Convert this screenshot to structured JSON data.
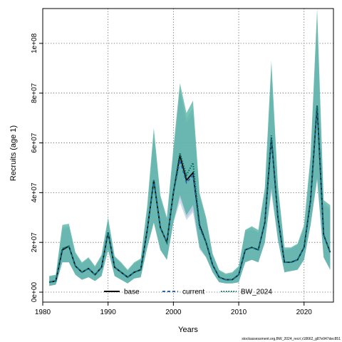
{
  "chart_data": {
    "type": "area",
    "xlabel": "Years",
    "ylabel": "Recruits (age 1)",
    "xlim": [
      1980,
      2024.5
    ],
    "ylim": [
      -4000000,
      114000000
    ],
    "x_ticks": [
      1980,
      1990,
      2000,
      2010,
      2020
    ],
    "y_ticks": [
      0,
      20000000,
      40000000,
      60000000,
      80000000,
      100000000
    ],
    "y_tick_labels": [
      "0e+00",
      "2e+07",
      "4e+07",
      "6e+07",
      "8e+07",
      "1e+08"
    ],
    "grid": true,
    "legend_position": "bottom-center",
    "x": [
      1981,
      1982,
      1983,
      1984,
      1985,
      1986,
      1987,
      1988,
      1989,
      1990,
      1991,
      1992,
      1993,
      1994,
      1995,
      1996,
      1997,
      1998,
      1999,
      2000,
      2001,
      2002,
      2003,
      2004,
      2005,
      2006,
      2007,
      2008,
      2009,
      2010,
      2011,
      2012,
      2013,
      2014,
      2015,
      2016,
      2017,
      2018,
      2019,
      2020,
      2021,
      2022,
      2023,
      2024
    ],
    "series": [
      {
        "name": "base",
        "line_style": "solid",
        "color": "#000000",
        "band_color": "#9fb3cf",
        "values": [
          4000000,
          4500000,
          17000000,
          18500000,
          10500000,
          8000000,
          9500000,
          7000000,
          10000000,
          24000000,
          10000000,
          8000000,
          6000000,
          8000000,
          9000000,
          25000000,
          45000000,
          26000000,
          20000000,
          40000000,
          55000000,
          45000000,
          48000000,
          27000000,
          20000000,
          11000000,
          6000000,
          5000000,
          5000000,
          7000000,
          17000000,
          18000000,
          17000000,
          28000000,
          62000000,
          30000000,
          12000000,
          12000000,
          13000000,
          18000000,
          37000000,
          75000000,
          23000000,
          16000000
        ],
        "lower": [
          2500000,
          3000000,
          12000000,
          12000000,
          7000000,
          5000000,
          6000000,
          4500000,
          6500000,
          17000000,
          6500000,
          5000000,
          3500000,
          5500000,
          6000000,
          18000000,
          28000000,
          17000000,
          13000000,
          28000000,
          38000000,
          30000000,
          33000000,
          18000000,
          14000000,
          8000000,
          4000000,
          3500000,
          3500000,
          4000000,
          12000000,
          13000000,
          12000000,
          20000000,
          40000000,
          21000000,
          8000000,
          8500000,
          9000000,
          13000000,
          27000000,
          45000000,
          14000000,
          9000000
        ],
        "upper": [
          6000000,
          6500000,
          25000000,
          26000000,
          15000000,
          11500000,
          13500000,
          10000000,
          14500000,
          29000000,
          14000000,
          11500000,
          8500000,
          11500000,
          13000000,
          33000000,
          62000000,
          38000000,
          29000000,
          55000000,
          80000000,
          68000000,
          72000000,
          38000000,
          29000000,
          15000000,
          8500000,
          7000000,
          7500000,
          10000000,
          24000000,
          25000000,
          24000000,
          40000000,
          88000000,
          42000000,
          17000000,
          17500000,
          19000000,
          25000000,
          52000000,
          108000000,
          35000000,
          33000000
        ]
      },
      {
        "name": "current",
        "line_style": "dashed",
        "color": "#2a66b0",
        "band_color": "#a9c2dd",
        "values": [
          4000000,
          4500000,
          17500000,
          18500000,
          10500000,
          8000000,
          9500000,
          7000000,
          10000000,
          24000000,
          10000000,
          8000000,
          6000000,
          8000000,
          9000000,
          25000000,
          45000000,
          26000000,
          20000000,
          40000000,
          53000000,
          44000000,
          47000000,
          26000000,
          20000000,
          11000000,
          6000000,
          5000000,
          5000000,
          7000000,
          17000000,
          18000000,
          17000000,
          28000000,
          62000000,
          30000000,
          12000000,
          12000000,
          13000000,
          18000000,
          37000000,
          75000000,
          23000000,
          16000000
        ],
        "lower": [
          2500000,
          3000000,
          12000000,
          12000000,
          7000000,
          5000000,
          6000000,
          4500000,
          6500000,
          17000000,
          6500000,
          5000000,
          3500000,
          5500000,
          6000000,
          18000000,
          28000000,
          17000000,
          13000000,
          28000000,
          36000000,
          29000000,
          32000000,
          17000000,
          14000000,
          8000000,
          4000000,
          3500000,
          3500000,
          4000000,
          12000000,
          13000000,
          12000000,
          20000000,
          40000000,
          21000000,
          8000000,
          8500000,
          9000000,
          13000000,
          27000000,
          45000000,
          14000000,
          9000000
        ],
        "upper": [
          6500000,
          7000000,
          26000000,
          26500000,
          15500000,
          11500000,
          13500000,
          10000000,
          14500000,
          29000000,
          14000000,
          11500000,
          8500000,
          11500000,
          13000000,
          34000000,
          64000000,
          38000000,
          29000000,
          56000000,
          82000000,
          70000000,
          74000000,
          39000000,
          30000000,
          15000000,
          8500000,
          7000000,
          7500000,
          10000000,
          25000000,
          26000000,
          24000000,
          41000000,
          90000000,
          42000000,
          17000000,
          17500000,
          19000000,
          26000000,
          53000000,
          110000000,
          36000000,
          34000000
        ]
      },
      {
        "name": "BW_2024",
        "line_style": "dotted",
        "color": "#006d5b",
        "band_color": "#4fb0a0",
        "values": [
          4000000,
          4500000,
          17500000,
          18500000,
          10500000,
          8000000,
          9500000,
          7000000,
          10000000,
          24000000,
          10000000,
          8000000,
          6000000,
          8000000,
          9000000,
          25000000,
          45000000,
          26000000,
          20000000,
          40000000,
          56000000,
          47000000,
          52000000,
          27000000,
          20000000,
          11000000,
          6000000,
          5000000,
          5000000,
          7000000,
          17000000,
          18000000,
          17000000,
          28000000,
          63000000,
          30000000,
          12000000,
          12000000,
          13000000,
          18000000,
          37000000,
          75000000,
          23000000,
          16000000
        ],
        "lower": [
          2500000,
          3000000,
          12000000,
          12000000,
          7000000,
          5000000,
          6000000,
          4500000,
          6500000,
          17000000,
          6500000,
          5000000,
          3500000,
          5500000,
          6000000,
          18000000,
          28000000,
          17000000,
          13000000,
          28000000,
          39000000,
          31000000,
          35000000,
          18000000,
          14000000,
          8000000,
          4000000,
          3500000,
          3500000,
          4000000,
          12000000,
          13000000,
          12000000,
          20000000,
          42000000,
          21000000,
          8000000,
          8500000,
          9000000,
          13000000,
          27000000,
          46000000,
          14000000,
          9000000
        ],
        "upper": [
          6500000,
          7000000,
          27000000,
          27500000,
          16000000,
          12000000,
          14000000,
          10500000,
          15000000,
          30000000,
          14500000,
          12000000,
          9000000,
          12000000,
          13500000,
          35000000,
          66000000,
          39000000,
          30000000,
          58000000,
          84000000,
          72000000,
          77000000,
          40000000,
          30000000,
          15500000,
          9000000,
          7500000,
          8000000,
          10500000,
          25000000,
          26500000,
          25000000,
          42000000,
          93000000,
          43000000,
          18000000,
          18000000,
          19500000,
          27000000,
          55000000,
          114000000,
          37000000,
          35000000
        ]
      }
    ]
  },
  "caption": "stockassessment.org,BW_2024_recr/,r18662_g87e947dec851"
}
